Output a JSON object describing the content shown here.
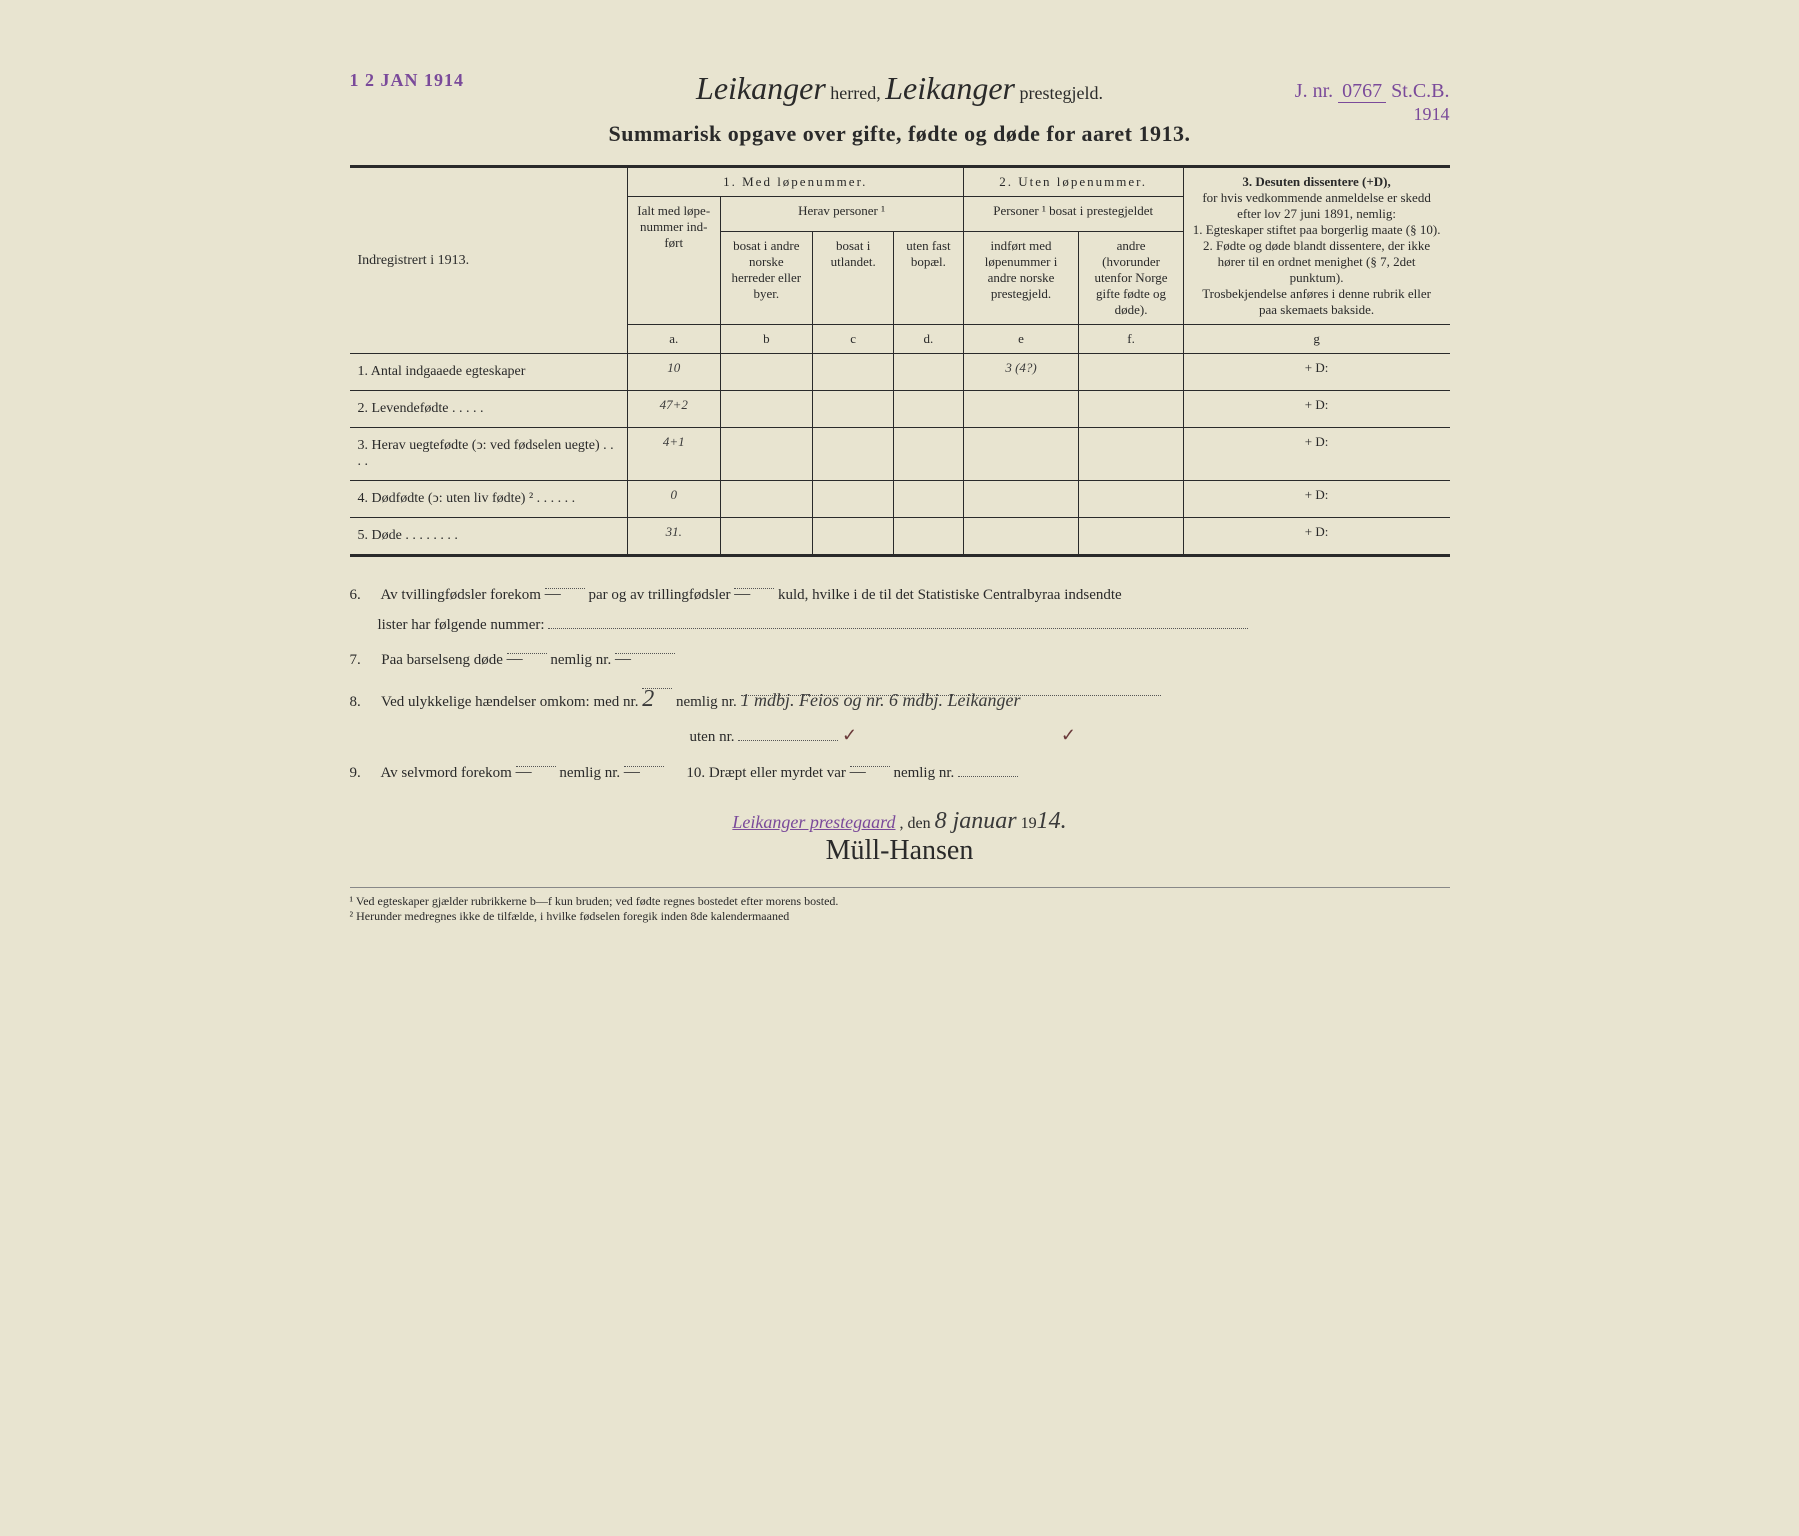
{
  "stamp_date": "1 2 JAN 1914",
  "jnr": {
    "prefix": "J. nr.",
    "number": "0767",
    "suffix": "St.C.B.",
    "year": "1914"
  },
  "header": {
    "herred": "Leikanger",
    "herred_label": "herred,",
    "prestegjeld": "Leikanger",
    "prestegjeld_label": "prestegjeld."
  },
  "title": "Summarisk opgave over gifte, fødte og døde for aaret 1913.",
  "indreg_label": "Indregistrert i 1913.",
  "colheads": {
    "sec1": "1. Med løpenummer.",
    "sec2": "2. Uten løpenummer.",
    "sec3": "3. Desuten dissentere (+D),",
    "ialt": "Ialt med løpe-nummer ind-ført",
    "herav": "Herav personer ¹",
    "b": "bosat i andre norske herreder eller byer.",
    "c": "bosat i utlandet.",
    "d": "uten fast bopæl.",
    "sec2sub": "Personer ¹ bosat i prestegjeldet",
    "e": "indført med løpenummer i andre norske prestegjeld.",
    "f": "andre (hvorunder utenfor Norge gifte fødte og døde).",
    "g_text": "for hvis vedkommende anmeldelse er skedd efter lov 27 juni 1891, nemlig:\n1. Egteskaper stiftet paa borgerlig maate (§ 10).\n2. Fødte og døde blandt dissentere, der ikke hører til en ordnet menighet (§ 7, 2det punktum).\nTrosbekjendelse anføres i denne rubrik eller paa skemaets bakside.",
    "letters": {
      "a": "a.",
      "b": "b",
      "c": "c",
      "d": "d.",
      "e": "e",
      "f": "f.",
      "g": "g"
    }
  },
  "rows": [
    {
      "n": "1.",
      "label": "Antal indgaaede egteskaper",
      "a": "10",
      "e": "3 (4?)",
      "g": "+ D:"
    },
    {
      "n": "2.",
      "label": "Levendefødte . . . . .",
      "a": "47+2",
      "e": "",
      "g": "+ D:"
    },
    {
      "n": "3.",
      "label": "Herav uegtefødte (ↄ: ved fødselen uegte) . . . .",
      "a": "4+1",
      "e": "",
      "g": "+ D:"
    },
    {
      "n": "4.",
      "label": "Dødfødte (ↄ: uten liv fødte) ² . . . . . .",
      "a": "0",
      "e": "",
      "g": "+ D:"
    },
    {
      "n": "5.",
      "label": "Døde . . . . . . . .",
      "a": "31.",
      "e": "",
      "g": "+ D:"
    }
  ],
  "footer": {
    "l6": "Av tvillingfødsler forekom",
    "l6b": "par og av trillingfødsler",
    "l6c": "kuld, hvilke i de til det Statistiske Centralbyraa indsendte",
    "l6d": "lister har følgende nummer:",
    "l7": "Paa barselseng døde",
    "nemlig": "nemlig nr.",
    "l8": "Ved ulykkelige hændelser omkom: med nr.",
    "l8_val": "2",
    "l8_text": "1 mdbj. Feios og nr. 6 mdbj. Leikanger",
    "l8b": "uten nr.",
    "l9": "Av selvmord forekom",
    "l10": "10.  Dræpt eller myrdet var",
    "dash": "—"
  },
  "sig": {
    "place": "Leikanger prestegaard",
    "den": ", den",
    "date": "8 januar",
    "year": "1914.",
    "name": "Müll-Hansen"
  },
  "footnotes": {
    "f1": "¹ Ved egteskaper gjælder rubrikkerne b—f kun bruden; ved fødte regnes bostedet efter morens bosted.",
    "f2": "² Herunder medregnes ikke de tilfælde, i hvilke fødselen foregik inden 8de kalendermaaned"
  }
}
